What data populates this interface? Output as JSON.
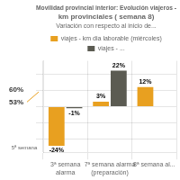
{
  "chart_data": {
    "type": "bar",
    "title": "Movilidad provincial interior: Evolución viajeros - km provinciales ( semana 8)",
    "subtitle": "Variación con respecto al inicio de...",
    "annotations": [
      "60%",
      "53%",
      "5ª semana"
    ],
    "categories": [
      "3ª semana\nalarma",
      "7ª semana alarma\n(preparación)",
      "8ª semana al..."
    ],
    "series": [
      {
        "name": "viajes - km dia laborable (miércoles)",
        "color": "#E8A020",
        "values": [
          -24,
          3,
          12
        ],
        "value_labels": [
          "-24%",
          "3%",
          "12%"
        ]
      },
      {
        "name": "viajes - ...",
        "color": "#5B5B52",
        "values": [
          -1,
          22,
          0
        ],
        "value_labels": [
          "-1%",
          "22%",
          null
        ]
      }
    ],
    "ylim": [
      -28,
      28
    ],
    "yticks": [
      -20,
      -10,
      0,
      10,
      20
    ],
    "grid": true,
    "legend": "top",
    "data_labels": true,
    "tick_labels": "x"
  }
}
